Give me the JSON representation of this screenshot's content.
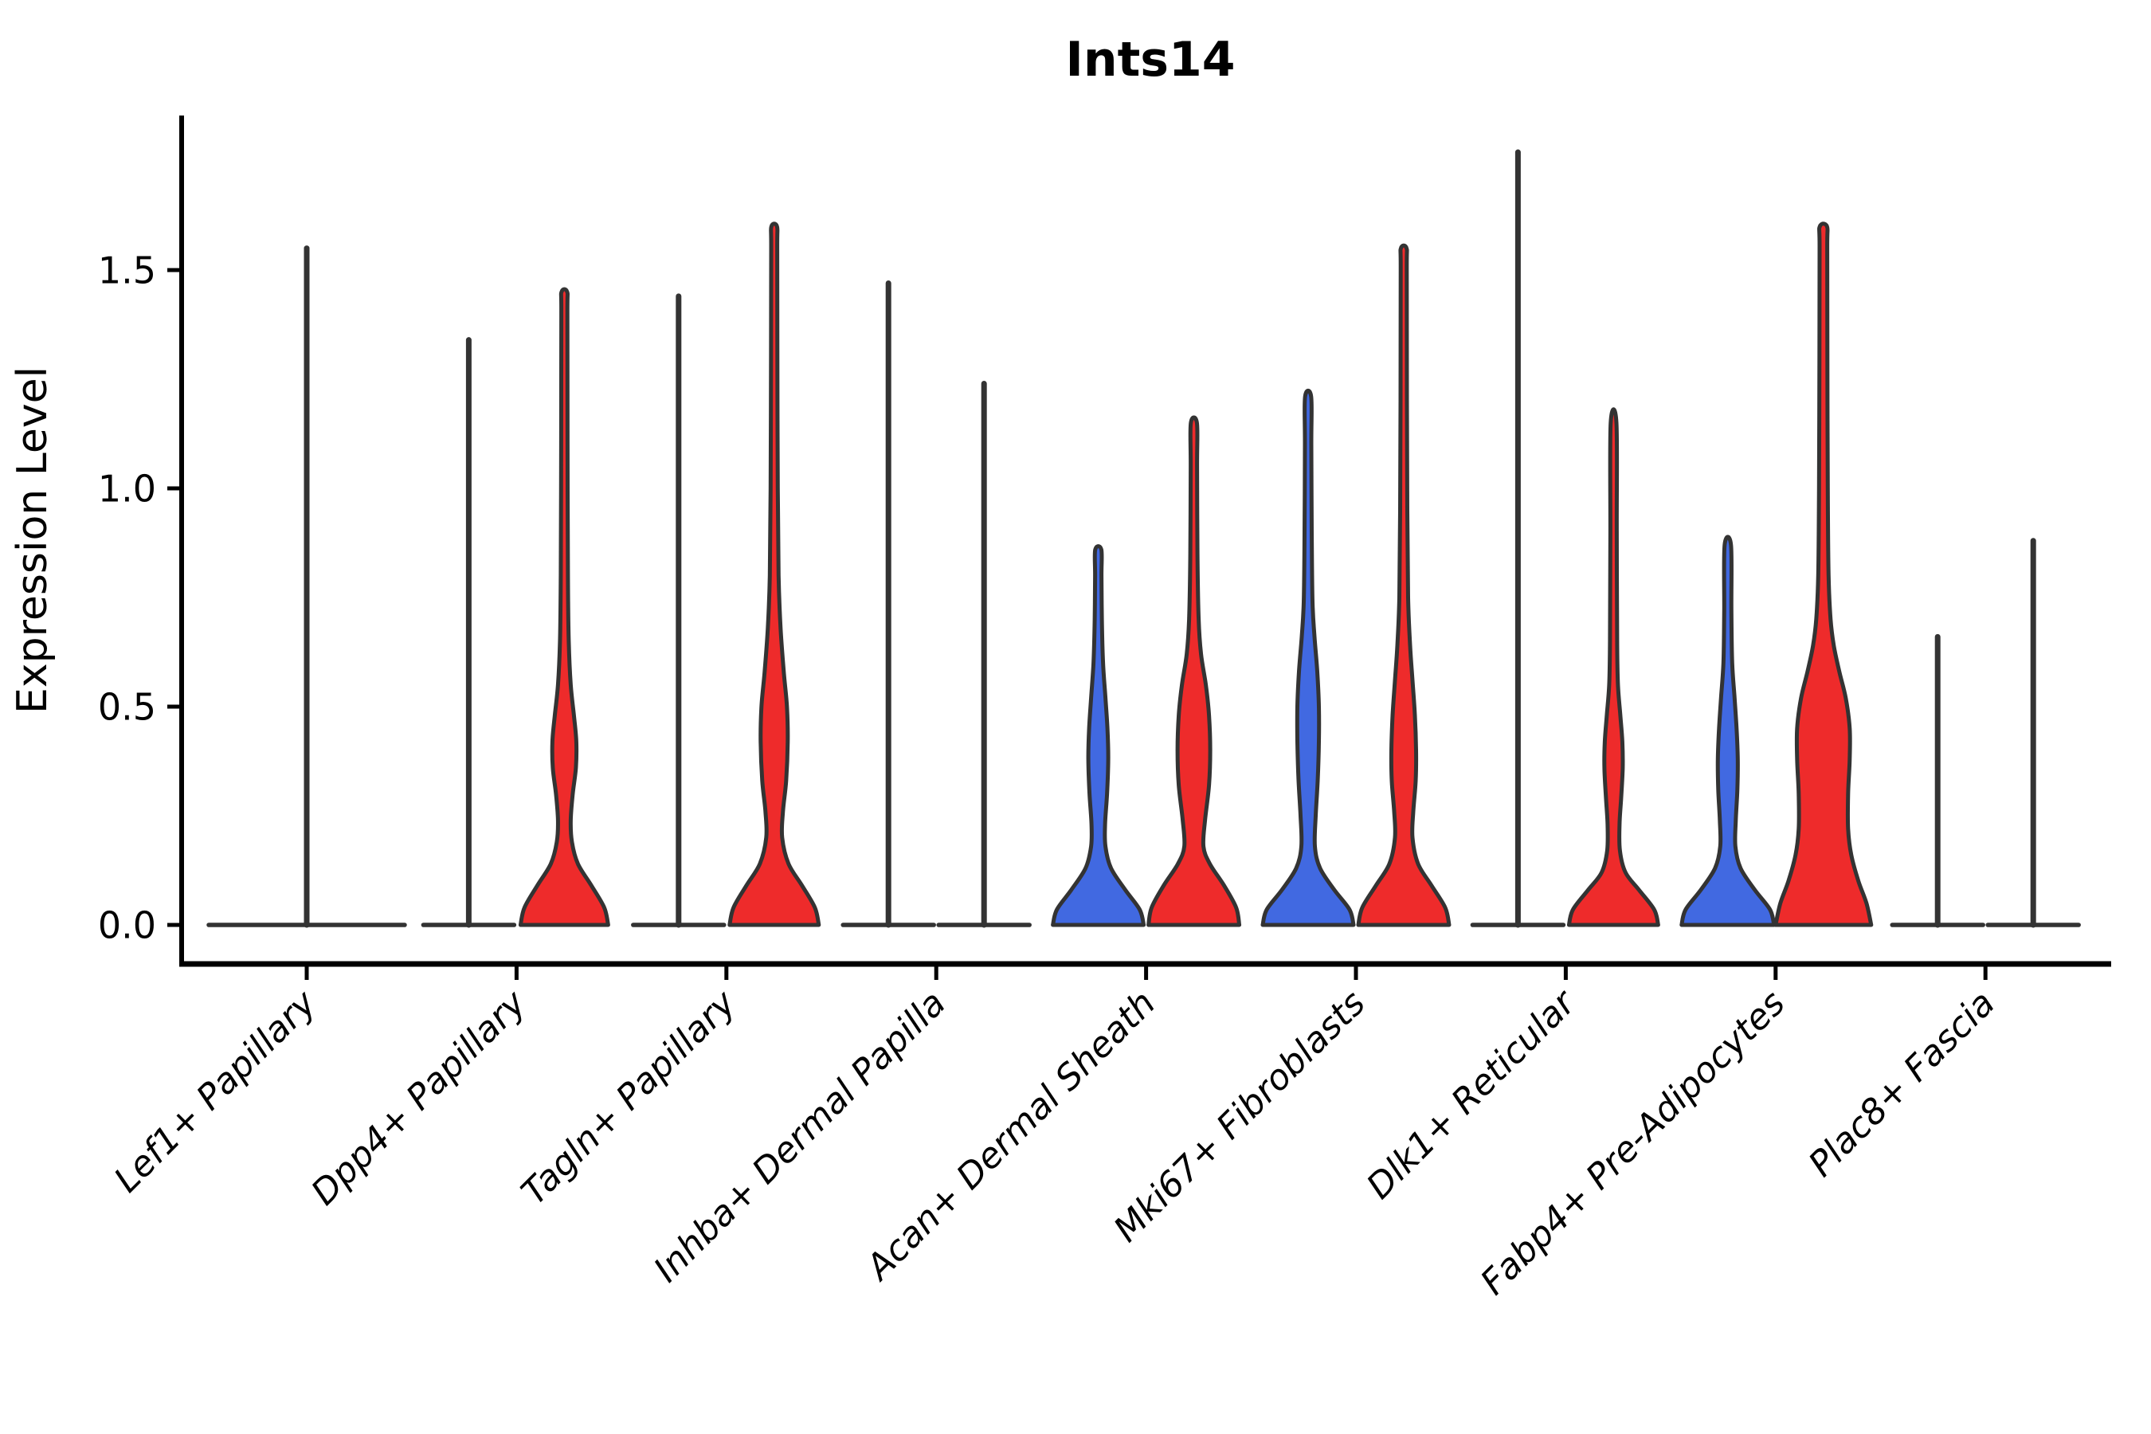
{
  "title": "Ints14",
  "ylabel": "Expression Level",
  "colors": {
    "red": "#EE2B2B",
    "blue": "#4169E1",
    "outline": "#333333",
    "spine": "#000000",
    "background": "#ffffff"
  },
  "chart_data": {
    "type": "violin",
    "title": "Ints14",
    "ylabel": "Expression Level",
    "xlabel": "",
    "grid": false,
    "legend": "none",
    "ylim": [
      -0.09,
      1.86
    ],
    "yticks": [
      {
        "value": 0.0,
        "label": "0.0"
      },
      {
        "value": 0.5,
        "label": "0.5"
      },
      {
        "value": 1.0,
        "label": "1.0"
      },
      {
        "value": 1.5,
        "label": "1.5"
      }
    ],
    "categories": [
      "Lef1+ Papillary",
      "Dpp4+ Papillary",
      "Tagln+ Papillary",
      "Inhba+ Dermal Papilla",
      "Acan+ Dermal Sheath",
      "Mki67+ Fibroblasts",
      "Dlk1+ Reticular",
      "Fabp4+ Pre-Adipocytes",
      "Plac8+ Fascia"
    ],
    "groups": [
      {
        "label": "Lef1+ Papillary",
        "violins": [
          {
            "side": "full",
            "fill": "none",
            "shape": "flat",
            "halfwidth": 123,
            "max": 1.55
          }
        ]
      },
      {
        "label": "Dpp4+ Papillary",
        "violins": [
          {
            "side": "left",
            "fill": "none",
            "shape": "flat",
            "halfwidth": 57,
            "max": 1.34
          },
          {
            "side": "right",
            "fill": "red",
            "shape": "density",
            "max": 1.45,
            "profile": [
              [
                0,
                55
              ],
              [
                0.04,
                50
              ],
              [
                0.09,
                34
              ],
              [
                0.14,
                17
              ],
              [
                0.19,
                9.5
              ],
              [
                0.24,
                8
              ],
              [
                0.3,
                10.5
              ],
              [
                0.36,
                14.5
              ],
              [
                0.42,
                15
              ],
              [
                0.48,
                12
              ],
              [
                0.55,
                8
              ],
              [
                0.65,
                5.5
              ],
              [
                0.8,
                4.5
              ],
              [
                1.1,
                4
              ],
              [
                1.4,
                3.8
              ],
              [
                1.45,
                3.5
              ]
            ]
          }
        ]
      },
      {
        "label": "Tagln+ Papillary",
        "violins": [
          {
            "side": "left",
            "fill": "none",
            "shape": "flat",
            "halfwidth": 57,
            "max": 1.44
          },
          {
            "side": "right",
            "fill": "red",
            "shape": "density",
            "max": 1.6,
            "profile": [
              [
                0,
                56
              ],
              [
                0.04,
                51
              ],
              [
                0.09,
                35
              ],
              [
                0.14,
                18
              ],
              [
                0.2,
                10
              ],
              [
                0.26,
                11
              ],
              [
                0.33,
                15
              ],
              [
                0.42,
                17
              ],
              [
                0.5,
                16
              ],
              [
                0.58,
                12
              ],
              [
                0.68,
                8
              ],
              [
                0.8,
                5.5
              ],
              [
                1.0,
                4.5
              ],
              [
                1.3,
                4
              ],
              [
                1.55,
                3.8
              ],
              [
                1.6,
                3.5
              ]
            ]
          }
        ]
      },
      {
        "label": "Inhba+ Dermal Papilla",
        "violins": [
          {
            "side": "left",
            "fill": "none",
            "shape": "flat",
            "halfwidth": 57,
            "max": 1.47
          },
          {
            "side": "right",
            "fill": "none",
            "shape": "flat",
            "halfwidth": 57,
            "max": 1.24
          }
        ]
      },
      {
        "label": "Acan+ Dermal Sheath",
        "violins": [
          {
            "side": "left",
            "fill": "blue",
            "shape": "density",
            "max": 0.86,
            "profile": [
              [
                0,
                57
              ],
              [
                0.035,
                52
              ],
              [
                0.08,
                34
              ],
              [
                0.13,
                16
              ],
              [
                0.18,
                9
              ],
              [
                0.23,
                8.5
              ],
              [
                0.3,
                11
              ],
              [
                0.38,
                12.5
              ],
              [
                0.45,
                11.5
              ],
              [
                0.52,
                9
              ],
              [
                0.6,
                6
              ],
              [
                0.7,
                4.5
              ],
              [
                0.8,
                4
              ],
              [
                0.86,
                3.8
              ]
            ]
          },
          {
            "side": "right",
            "fill": "red",
            "shape": "density",
            "max": 1.15,
            "profile": [
              [
                0,
                57
              ],
              [
                0.04,
                53
              ],
              [
                0.09,
                38
              ],
              [
                0.14,
                20
              ],
              [
                0.18,
                12
              ],
              [
                0.24,
                14
              ],
              [
                0.32,
                19
              ],
              [
                0.4,
                20.5
              ],
              [
                0.48,
                19
              ],
              [
                0.55,
                15
              ],
              [
                0.62,
                9
              ],
              [
                0.7,
                6
              ],
              [
                0.85,
                4.5
              ],
              [
                1.05,
                4
              ],
              [
                1.15,
                3.8
              ]
            ]
          }
        ]
      },
      {
        "label": "Mki67+ Fibroblasts",
        "violins": [
          {
            "side": "left",
            "fill": "blue",
            "shape": "density",
            "max": 1.21,
            "profile": [
              [
                0,
                57
              ],
              [
                0.035,
                52
              ],
              [
                0.08,
                33
              ],
              [
                0.13,
                15
              ],
              [
                0.18,
                8.5
              ],
              [
                0.25,
                9.5
              ],
              [
                0.33,
                12
              ],
              [
                0.42,
                13.5
              ],
              [
                0.5,
                13.5
              ],
              [
                0.58,
                11.5
              ],
              [
                0.66,
                8
              ],
              [
                0.74,
                5.5
              ],
              [
                0.9,
                4.5
              ],
              [
                1.1,
                4
              ],
              [
                1.21,
                3.8
              ]
            ]
          },
          {
            "side": "right",
            "fill": "red",
            "shape": "density",
            "max": 1.55,
            "profile": [
              [
                0,
                57
              ],
              [
                0.04,
                52
              ],
              [
                0.09,
                35
              ],
              [
                0.14,
                18
              ],
              [
                0.2,
                11
              ],
              [
                0.26,
                12
              ],
              [
                0.33,
                15
              ],
              [
                0.4,
                15.5
              ],
              [
                0.48,
                14
              ],
              [
                0.56,
                11
              ],
              [
                0.64,
                8
              ],
              [
                0.75,
                5.5
              ],
              [
                0.95,
                4.5
              ],
              [
                1.2,
                4
              ],
              [
                1.5,
                3.8
              ],
              [
                1.55,
                3.5
              ]
            ]
          }
        ]
      },
      {
        "label": "Dlk1+ Reticular",
        "violins": [
          {
            "side": "left",
            "fill": "none",
            "shape": "flat",
            "halfwidth": 57,
            "max": 1.77
          },
          {
            "side": "right",
            "fill": "red",
            "shape": "density",
            "max": 1.15,
            "profile": [
              [
                0,
                56
              ],
              [
                0.035,
                51
              ],
              [
                0.08,
                32
              ],
              [
                0.12,
                15
              ],
              [
                0.17,
                8
              ],
              [
                0.23,
                7.5
              ],
              [
                0.29,
                9.5
              ],
              [
                0.36,
                11.5
              ],
              [
                0.42,
                11
              ],
              [
                0.48,
                8.5
              ],
              [
                0.55,
                5.5
              ],
              [
                0.65,
                4.5
              ],
              [
                0.9,
                4
              ],
              [
                1.15,
                3.6
              ]
            ]
          }
        ]
      },
      {
        "label": "Fabp4+ Pre-Adipocytes",
        "violins": [
          {
            "side": "left",
            "fill": "blue",
            "shape": "density",
            "max": 0.87,
            "profile": [
              [
                0,
                58
              ],
              [
                0.035,
                53
              ],
              [
                0.08,
                34
              ],
              [
                0.13,
                16
              ],
              [
                0.18,
                9.5
              ],
              [
                0.24,
                10
              ],
              [
                0.31,
                12
              ],
              [
                0.38,
                12.5
              ],
              [
                0.45,
                11
              ],
              [
                0.52,
                8.5
              ],
              [
                0.6,
                5.5
              ],
              [
                0.72,
                4.5
              ],
              [
                0.87,
                4
              ]
            ]
          },
          {
            "side": "right",
            "fill": "red",
            "shape": "density",
            "max": 1.6,
            "profile": [
              [
                0,
                60
              ],
              [
                0.05,
                54
              ],
              [
                0.1,
                44
              ],
              [
                0.16,
                35
              ],
              [
                0.22,
                31
              ],
              [
                0.3,
                31
              ],
              [
                0.38,
                33
              ],
              [
                0.45,
                33
              ],
              [
                0.52,
                28
              ],
              [
                0.58,
                20
              ],
              [
                0.64,
                13
              ],
              [
                0.7,
                9
              ],
              [
                0.8,
                6.5
              ],
              [
                1.0,
                5.5
              ],
              [
                1.3,
                5
              ],
              [
                1.55,
                4.8
              ],
              [
                1.6,
                4.5
              ]
            ]
          }
        ]
      },
      {
        "label": "Plac8+ Fascia",
        "violins": [
          {
            "side": "left",
            "fill": "none",
            "shape": "flat",
            "halfwidth": 57,
            "max": 0.66
          },
          {
            "side": "right",
            "fill": "none",
            "shape": "flat",
            "halfwidth": 57,
            "max": 0.88
          }
        ]
      }
    ]
  }
}
